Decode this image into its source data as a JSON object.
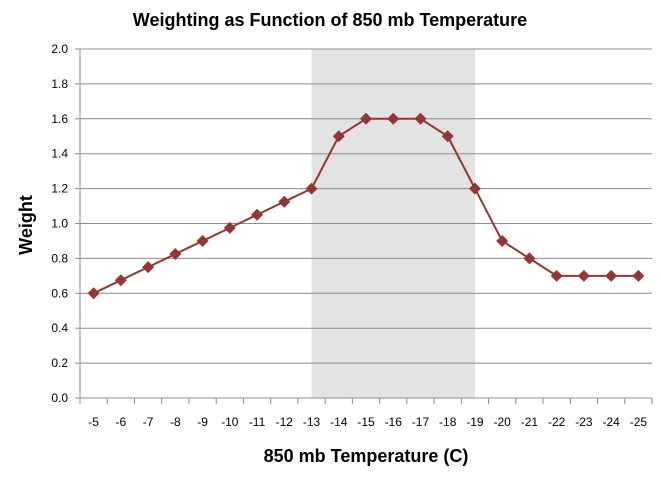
{
  "chart_data": {
    "type": "line",
    "title": "Weighting as Function of 850 mb Temperature",
    "xlabel": "850 mb Temperature (C)",
    "ylabel": "Weight",
    "categories": [
      "-5",
      "-6",
      "-7",
      "-8",
      "-9",
      "-10",
      "-11",
      "-12",
      "-13",
      "-14",
      "-15",
      "-16",
      "-17",
      "-18",
      "-19",
      "-20",
      "-21",
      "-22",
      "-23",
      "-24",
      "-25"
    ],
    "series": [
      {
        "values": [
          0.6,
          0.675,
          0.75,
          0.825,
          0.9,
          0.975,
          1.05,
          1.125,
          1.2,
          1.5,
          1.6,
          1.6,
          1.6,
          1.5,
          1.2,
          0.9,
          0.8,
          0.7,
          0.7,
          0.7,
          0.7
        ],
        "color": "#943634",
        "marker": "diamond"
      }
    ],
    "ylim": [
      0,
      2.0
    ],
    "yticks": [
      "0.0",
      "0.2",
      "0.4",
      "0.6",
      "0.8",
      "1.0",
      "1.2",
      "1.4",
      "1.6",
      "1.8",
      "2.0"
    ],
    "grid": true,
    "highlight_band": {
      "from": "-13",
      "to": "-19",
      "color": "#e3e3e3"
    },
    "legend": "none"
  }
}
